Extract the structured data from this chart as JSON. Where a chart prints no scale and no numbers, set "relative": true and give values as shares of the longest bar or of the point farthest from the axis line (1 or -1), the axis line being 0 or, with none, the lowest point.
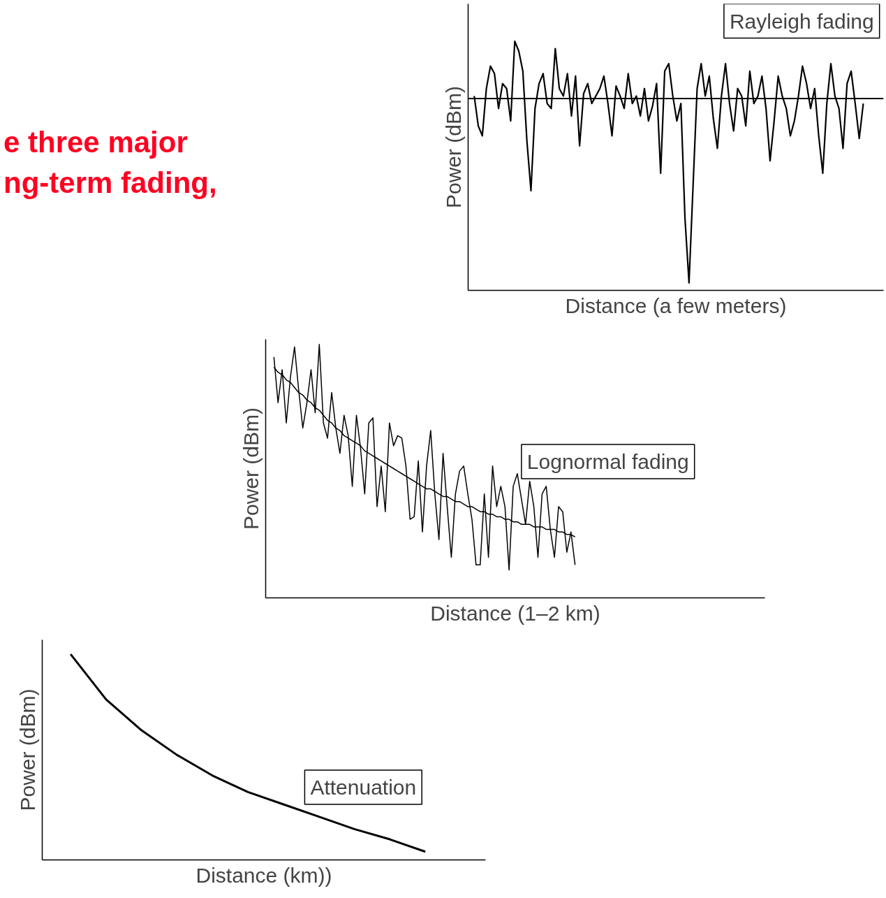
{
  "chart_data": [
    {
      "type": "line",
      "relative": true,
      "xlabel": "Distance (a few meters)",
      "ylabel": "Power (dBm)",
      "annotations": [
        "Rayleigh fading",
        "e three major",
        "ng-term fading,"
      ],
      "ref_lines": [
        {
          "axis": "y",
          "value": 0.77,
          "color": "#000000"
        }
      ],
      "categories": [
        null,
        null,
        null,
        null,
        null,
        null,
        null,
        null,
        null,
        null,
        null,
        null,
        null,
        null,
        null,
        null,
        null,
        null,
        null,
        null,
        null,
        null,
        null,
        null,
        null,
        null,
        null,
        null,
        null,
        null,
        null,
        null,
        null,
        null,
        null,
        null,
        null,
        null,
        null,
        null,
        null,
        null,
        null,
        null,
        null,
        null,
        null,
        null,
        null,
        null,
        null,
        null,
        null,
        null,
        null,
        null,
        null,
        null,
        null,
        null,
        null,
        null,
        null,
        null,
        null,
        null,
        null,
        null,
        null,
        null,
        null,
        null,
        null,
        null,
        null,
        null,
        null,
        null,
        null,
        null,
        null,
        null,
        null,
        null,
        null,
        null,
        null,
        null,
        null,
        null,
        null,
        null,
        null,
        null,
        null,
        null,
        null
      ],
      "series": [
        {
          "color": "#000000",
          "values": [
            0.78,
            0.66,
            0.62,
            0.81,
            0.9,
            0.87,
            0.73,
            0.83,
            0.81,
            0.68,
            1.0,
            0.96,
            0.88,
            0.6,
            0.4,
            0.73,
            0.83,
            0.87,
            0.75,
            0.73,
            0.97,
            0.81,
            0.78,
            0.87,
            0.7,
            0.86,
            0.58,
            0.79,
            0.83,
            0.75,
            0.78,
            0.81,
            0.86,
            0.75,
            0.62,
            0.82,
            0.78,
            0.73,
            0.87,
            0.75,
            0.78,
            0.7,
            0.81,
            0.68,
            0.74,
            0.83,
            0.47,
            0.88,
            0.91,
            0.78,
            0.68,
            0.75,
            0.29,
            0.03,
            0.42,
            0.81,
            0.91,
            0.78,
            0.86,
            0.69,
            0.57,
            0.78,
            0.91,
            0.75,
            0.64,
            0.81,
            0.78,
            0.66,
            0.88,
            0.75,
            0.78,
            0.86,
            0.73,
            0.52,
            0.68,
            0.86,
            0.78,
            0.73,
            0.62,
            0.68,
            0.78,
            0.9,
            0.83,
            0.73,
            0.81,
            0.62,
            0.47,
            0.75,
            0.91,
            0.78,
            0.73,
            0.57,
            0.83,
            0.88,
            0.75,
            0.61,
            0.75
          ]
        }
      ]
    },
    {
      "type": "line",
      "relative": true,
      "xlabel": "Distance (1–2 km)",
      "ylabel": "Power (dBm)",
      "annotations": [
        "Lognormal fading"
      ],
      "categories": [
        null,
        null,
        null,
        null,
        null,
        null,
        null,
        null,
        null,
        null,
        null,
        null,
        null,
        null,
        null,
        null,
        null,
        null,
        null,
        null,
        null,
        null,
        null,
        null,
        null,
        null,
        null,
        null,
        null,
        null,
        null,
        null,
        null,
        null,
        null,
        null,
        null,
        null,
        null,
        null,
        null,
        null,
        null,
        null,
        null,
        null,
        null,
        null,
        null,
        null,
        null,
        null,
        null,
        null,
        null,
        null,
        null,
        null,
        null,
        null,
        null,
        null,
        null,
        null,
        null,
        null,
        null,
        null,
        null,
        null,
        null,
        null,
        null,
        null
      ],
      "series": [
        {
          "color": "#000000",
          "values": [
            0.95,
            0.77,
            0.9,
            0.69,
            0.87,
            0.99,
            0.82,
            0.67,
            0.77,
            0.9,
            0.73,
            1.0,
            0.69,
            0.63,
            0.81,
            0.67,
            0.57,
            0.72,
            0.64,
            0.44,
            0.72,
            0.59,
            0.41,
            0.69,
            0.71,
            0.36,
            0.52,
            0.34,
            0.69,
            0.6,
            0.64,
            0.63,
            0.52,
            0.31,
            0.32,
            0.54,
            0.26,
            0.52,
            0.66,
            0.41,
            0.23,
            0.57,
            0.36,
            0.16,
            0.41,
            0.5,
            0.52,
            0.41,
            0.31,
            0.13,
            0.13,
            0.41,
            0.16,
            0.52,
            0.36,
            0.44,
            0.36,
            0.11,
            0.44,
            0.49,
            0.39,
            0.29,
            0.46,
            0.36,
            0.16,
            0.41,
            0.44,
            0.27,
            0.16,
            0.36,
            0.34,
            0.18,
            0.26,
            0.13
          ]
        },
        {
          "color": "#000000",
          "values": [
            0.91,
            0.89,
            0.88,
            0.86,
            0.85,
            0.83,
            0.81,
            0.8,
            0.78,
            0.77,
            0.75,
            0.74,
            0.72,
            0.7,
            0.69,
            0.67,
            0.66,
            0.64,
            0.63,
            0.62,
            0.61,
            0.6,
            0.58,
            0.57,
            0.56,
            0.55,
            0.54,
            0.53,
            0.52,
            0.51,
            0.5,
            0.49,
            0.48,
            0.47,
            0.46,
            0.45,
            0.44,
            0.43,
            0.43,
            0.42,
            0.41,
            0.4,
            0.4,
            0.39,
            0.38,
            0.38,
            0.37,
            0.36,
            0.36,
            0.35,
            0.34,
            0.34,
            0.33,
            0.33,
            0.32,
            0.32,
            0.31,
            0.31,
            0.3,
            0.3,
            0.29,
            0.29,
            0.29,
            0.28,
            0.28,
            0.28,
            0.27,
            0.27,
            0.27,
            0.26,
            0.26,
            0.25,
            0.25,
            0.24
          ]
        }
      ]
    },
    {
      "type": "line",
      "relative": true,
      "xlabel": "Distance (km))",
      "ylabel": "Power (dBm)",
      "annotations": [
        "Attenuation"
      ],
      "categories": [
        null,
        null,
        null,
        null,
        null,
        null,
        null,
        null,
        null,
        null,
        null
      ],
      "series": [
        {
          "color": "#000000",
          "values": [
            1.0,
            0.78,
            0.63,
            0.51,
            0.41,
            0.33,
            0.27,
            0.21,
            0.15,
            0.1,
            0.04
          ]
        }
      ]
    }
  ]
}
